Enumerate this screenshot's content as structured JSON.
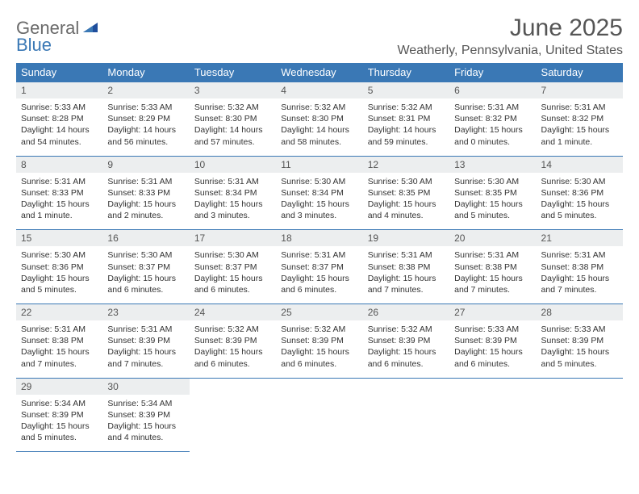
{
  "logo": {
    "text_top": "General",
    "text_bottom": "Blue",
    "color_general": "#6a6a6a",
    "color_blue": "#3a78b5"
  },
  "header": {
    "month_title": "June 2025",
    "location": "Weatherly, Pennsylvania, United States",
    "title_fontsize": 30,
    "title_color": "#555555",
    "location_fontsize": 16
  },
  "calendar": {
    "columns": [
      "Sunday",
      "Monday",
      "Tuesday",
      "Wednesday",
      "Thursday",
      "Friday",
      "Saturday"
    ],
    "header_bg": "#3a78b5",
    "header_fg": "#ffffff",
    "daynum_bg": "#eceeef",
    "border_color": "#3a78b5",
    "body_fontsize": 10.5,
    "rows": [
      [
        {
          "num": "1",
          "sunrise": "Sunrise: 5:33 AM",
          "sunset": "Sunset: 8:28 PM",
          "daylight1": "Daylight: 14 hours",
          "daylight2": "and 54 minutes."
        },
        {
          "num": "2",
          "sunrise": "Sunrise: 5:33 AM",
          "sunset": "Sunset: 8:29 PM",
          "daylight1": "Daylight: 14 hours",
          "daylight2": "and 56 minutes."
        },
        {
          "num": "3",
          "sunrise": "Sunrise: 5:32 AM",
          "sunset": "Sunset: 8:30 PM",
          "daylight1": "Daylight: 14 hours",
          "daylight2": "and 57 minutes."
        },
        {
          "num": "4",
          "sunrise": "Sunrise: 5:32 AM",
          "sunset": "Sunset: 8:30 PM",
          "daylight1": "Daylight: 14 hours",
          "daylight2": "and 58 minutes."
        },
        {
          "num": "5",
          "sunrise": "Sunrise: 5:32 AM",
          "sunset": "Sunset: 8:31 PM",
          "daylight1": "Daylight: 14 hours",
          "daylight2": "and 59 minutes."
        },
        {
          "num": "6",
          "sunrise": "Sunrise: 5:31 AM",
          "sunset": "Sunset: 8:32 PM",
          "daylight1": "Daylight: 15 hours",
          "daylight2": "and 0 minutes."
        },
        {
          "num": "7",
          "sunrise": "Sunrise: 5:31 AM",
          "sunset": "Sunset: 8:32 PM",
          "daylight1": "Daylight: 15 hours",
          "daylight2": "and 1 minute."
        }
      ],
      [
        {
          "num": "8",
          "sunrise": "Sunrise: 5:31 AM",
          "sunset": "Sunset: 8:33 PM",
          "daylight1": "Daylight: 15 hours",
          "daylight2": "and 1 minute."
        },
        {
          "num": "9",
          "sunrise": "Sunrise: 5:31 AM",
          "sunset": "Sunset: 8:33 PM",
          "daylight1": "Daylight: 15 hours",
          "daylight2": "and 2 minutes."
        },
        {
          "num": "10",
          "sunrise": "Sunrise: 5:31 AM",
          "sunset": "Sunset: 8:34 PM",
          "daylight1": "Daylight: 15 hours",
          "daylight2": "and 3 minutes."
        },
        {
          "num": "11",
          "sunrise": "Sunrise: 5:30 AM",
          "sunset": "Sunset: 8:34 PM",
          "daylight1": "Daylight: 15 hours",
          "daylight2": "and 3 minutes."
        },
        {
          "num": "12",
          "sunrise": "Sunrise: 5:30 AM",
          "sunset": "Sunset: 8:35 PM",
          "daylight1": "Daylight: 15 hours",
          "daylight2": "and 4 minutes."
        },
        {
          "num": "13",
          "sunrise": "Sunrise: 5:30 AM",
          "sunset": "Sunset: 8:35 PM",
          "daylight1": "Daylight: 15 hours",
          "daylight2": "and 5 minutes."
        },
        {
          "num": "14",
          "sunrise": "Sunrise: 5:30 AM",
          "sunset": "Sunset: 8:36 PM",
          "daylight1": "Daylight: 15 hours",
          "daylight2": "and 5 minutes."
        }
      ],
      [
        {
          "num": "15",
          "sunrise": "Sunrise: 5:30 AM",
          "sunset": "Sunset: 8:36 PM",
          "daylight1": "Daylight: 15 hours",
          "daylight2": "and 5 minutes."
        },
        {
          "num": "16",
          "sunrise": "Sunrise: 5:30 AM",
          "sunset": "Sunset: 8:37 PM",
          "daylight1": "Daylight: 15 hours",
          "daylight2": "and 6 minutes."
        },
        {
          "num": "17",
          "sunrise": "Sunrise: 5:30 AM",
          "sunset": "Sunset: 8:37 PM",
          "daylight1": "Daylight: 15 hours",
          "daylight2": "and 6 minutes."
        },
        {
          "num": "18",
          "sunrise": "Sunrise: 5:31 AM",
          "sunset": "Sunset: 8:37 PM",
          "daylight1": "Daylight: 15 hours",
          "daylight2": "and 6 minutes."
        },
        {
          "num": "19",
          "sunrise": "Sunrise: 5:31 AM",
          "sunset": "Sunset: 8:38 PM",
          "daylight1": "Daylight: 15 hours",
          "daylight2": "and 7 minutes."
        },
        {
          "num": "20",
          "sunrise": "Sunrise: 5:31 AM",
          "sunset": "Sunset: 8:38 PM",
          "daylight1": "Daylight: 15 hours",
          "daylight2": "and 7 minutes."
        },
        {
          "num": "21",
          "sunrise": "Sunrise: 5:31 AM",
          "sunset": "Sunset: 8:38 PM",
          "daylight1": "Daylight: 15 hours",
          "daylight2": "and 7 minutes."
        }
      ],
      [
        {
          "num": "22",
          "sunrise": "Sunrise: 5:31 AM",
          "sunset": "Sunset: 8:38 PM",
          "daylight1": "Daylight: 15 hours",
          "daylight2": "and 7 minutes."
        },
        {
          "num": "23",
          "sunrise": "Sunrise: 5:31 AM",
          "sunset": "Sunset: 8:39 PM",
          "daylight1": "Daylight: 15 hours",
          "daylight2": "and 7 minutes."
        },
        {
          "num": "24",
          "sunrise": "Sunrise: 5:32 AM",
          "sunset": "Sunset: 8:39 PM",
          "daylight1": "Daylight: 15 hours",
          "daylight2": "and 6 minutes."
        },
        {
          "num": "25",
          "sunrise": "Sunrise: 5:32 AM",
          "sunset": "Sunset: 8:39 PM",
          "daylight1": "Daylight: 15 hours",
          "daylight2": "and 6 minutes."
        },
        {
          "num": "26",
          "sunrise": "Sunrise: 5:32 AM",
          "sunset": "Sunset: 8:39 PM",
          "daylight1": "Daylight: 15 hours",
          "daylight2": "and 6 minutes."
        },
        {
          "num": "27",
          "sunrise": "Sunrise: 5:33 AM",
          "sunset": "Sunset: 8:39 PM",
          "daylight1": "Daylight: 15 hours",
          "daylight2": "and 6 minutes."
        },
        {
          "num": "28",
          "sunrise": "Sunrise: 5:33 AM",
          "sunset": "Sunset: 8:39 PM",
          "daylight1": "Daylight: 15 hours",
          "daylight2": "and 5 minutes."
        }
      ],
      [
        {
          "num": "29",
          "sunrise": "Sunrise: 5:34 AM",
          "sunset": "Sunset: 8:39 PM",
          "daylight1": "Daylight: 15 hours",
          "daylight2": "and 5 minutes."
        },
        {
          "num": "30",
          "sunrise": "Sunrise: 5:34 AM",
          "sunset": "Sunset: 8:39 PM",
          "daylight1": "Daylight: 15 hours",
          "daylight2": "and 4 minutes."
        },
        null,
        null,
        null,
        null,
        null
      ]
    ]
  }
}
